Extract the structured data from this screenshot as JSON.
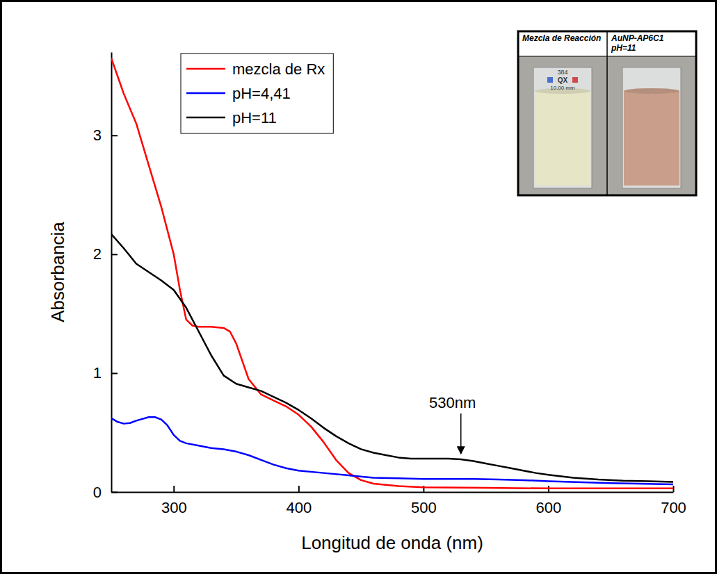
{
  "chart_data": {
    "type": "line",
    "xlabel": "Longitud de onda (nm)",
    "ylabel": "Absorbancia",
    "xlim": [
      250,
      700
    ],
    "xticks": [
      300,
      400,
      500,
      600,
      700
    ],
    "ylim": [
      0,
      3.7
    ],
    "yticks": [
      0,
      1,
      2,
      3
    ],
    "grid": false,
    "legend": "upper left",
    "series": [
      {
        "name": "mezcla de Rx",
        "color": "#ff0000",
        "x": [
          250,
          255,
          260,
          270,
          280,
          290,
          300,
          305,
          310,
          315,
          320,
          330,
          340,
          345,
          350,
          355,
          360,
          370,
          380,
          390,
          400,
          410,
          420,
          430,
          440,
          450,
          460,
          480,
          500,
          550,
          600,
          650,
          700
        ],
        "values": [
          3.65,
          3.5,
          3.35,
          3.1,
          2.75,
          2.4,
          2.0,
          1.7,
          1.45,
          1.4,
          1.39,
          1.39,
          1.38,
          1.35,
          1.25,
          1.1,
          0.95,
          0.82,
          0.77,
          0.72,
          0.65,
          0.55,
          0.42,
          0.27,
          0.16,
          0.1,
          0.07,
          0.05,
          0.04,
          0.035,
          0.03,
          0.03,
          0.03
        ]
      },
      {
        "name": "pH=4,41",
        "color": "#0000ff",
        "x": [
          250,
          255,
          260,
          265,
          270,
          280,
          285,
          290,
          295,
          300,
          305,
          310,
          320,
          330,
          340,
          350,
          360,
          370,
          380,
          390,
          400,
          420,
          440,
          460,
          480,
          500,
          520,
          540,
          560,
          580,
          600,
          650,
          700
        ],
        "values": [
          0.62,
          0.59,
          0.575,
          0.58,
          0.6,
          0.63,
          0.63,
          0.61,
          0.56,
          0.48,
          0.43,
          0.41,
          0.39,
          0.37,
          0.36,
          0.34,
          0.31,
          0.27,
          0.23,
          0.2,
          0.18,
          0.16,
          0.14,
          0.12,
          0.115,
          0.11,
          0.11,
          0.11,
          0.105,
          0.1,
          0.09,
          0.075,
          0.065
        ]
      },
      {
        "name": "pH=11",
        "color": "#000000",
        "x": [
          250,
          260,
          270,
          280,
          290,
          300,
          310,
          320,
          330,
          340,
          350,
          360,
          370,
          380,
          390,
          400,
          410,
          420,
          430,
          440,
          450,
          460,
          470,
          480,
          490,
          500,
          510,
          520,
          530,
          540,
          550,
          560,
          570,
          580,
          590,
          600,
          620,
          640,
          660,
          680,
          700
        ],
        "values": [
          2.17,
          2.05,
          1.92,
          1.85,
          1.78,
          1.7,
          1.55,
          1.35,
          1.15,
          0.98,
          0.91,
          0.88,
          0.85,
          0.8,
          0.75,
          0.69,
          0.62,
          0.54,
          0.47,
          0.41,
          0.36,
          0.33,
          0.31,
          0.29,
          0.28,
          0.28,
          0.28,
          0.28,
          0.275,
          0.26,
          0.24,
          0.22,
          0.2,
          0.18,
          0.16,
          0.145,
          0.12,
          0.105,
          0.095,
          0.09,
          0.085
        ]
      }
    ],
    "annotations": [
      {
        "text": "530nm",
        "x": 530,
        "y": 0.275
      }
    ],
    "inset": {
      "titles": [
        "Mezcla de Reacción",
        "AuNP-AP6C1 pH=11"
      ],
      "cuvette_text": [
        "384",
        "QX",
        "10.00 mm"
      ]
    }
  }
}
